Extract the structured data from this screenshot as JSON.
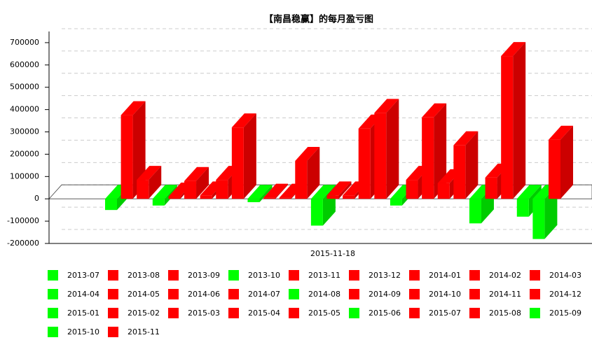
{
  "chart_data": {
    "type": "bar3d",
    "title": "【南昌稳赢】的每月盈亏图",
    "x_label": "2015-11-18",
    "categories": [
      "2013-07",
      "2013-08",
      "2013-09",
      "2013-10",
      "2013-11",
      "2013-12",
      "2014-01",
      "2014-02",
      "2014-03",
      "2014-04",
      "2014-05",
      "2014-06",
      "2014-07",
      "2014-08",
      "2014-09",
      "2014-10",
      "2014-11",
      "2014-12",
      "2015-01",
      "2015-02",
      "2015-03",
      "2015-04",
      "2015-05",
      "2015-06",
      "2015-07",
      "2015-08",
      "2015-09",
      "2015-10",
      "2015-11"
    ],
    "values": [
      -50000,
      375000,
      85000,
      -30000,
      10000,
      80000,
      15000,
      85000,
      320000,
      -15000,
      5000,
      5000,
      170000,
      -120000,
      15000,
      15000,
      315000,
      385000,
      -30000,
      85000,
      365000,
      70000,
      240000,
      -110000,
      95000,
      640000,
      -80000,
      -180000,
      265000
    ],
    "colors": [
      "#00ff00",
      "#ff0000",
      "#ff0000",
      "#00ff00",
      "#ff0000",
      "#ff0000",
      "#ff0000",
      "#ff0000",
      "#ff0000",
      "#00ff00",
      "#ff0000",
      "#ff0000",
      "#ff0000",
      "#00ff00",
      "#ff0000",
      "#ff0000",
      "#ff0000",
      "#ff0000",
      "#00ff00",
      "#ff0000",
      "#ff0000",
      "#ff0000",
      "#ff0000",
      "#00ff00",
      "#ff0000",
      "#ff0000",
      "#00ff00",
      "#00ff00",
      "#ff0000"
    ],
    "ylim": [
      -200000,
      750000
    ],
    "yticks": [
      -200000,
      -100000,
      0,
      100000,
      200000,
      300000,
      400000,
      500000,
      600000,
      700000
    ],
    "grid": true
  }
}
